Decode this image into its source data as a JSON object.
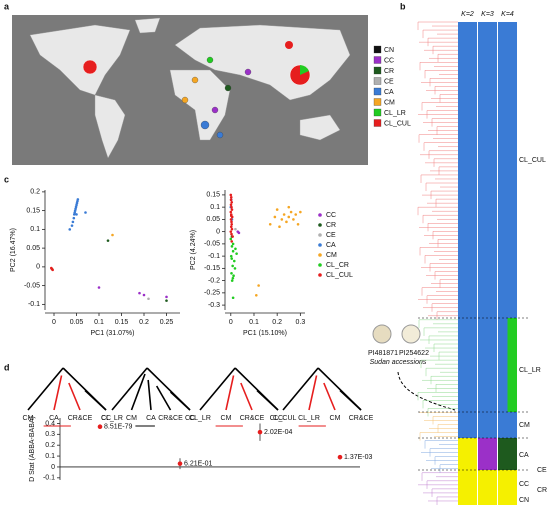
{
  "panel_labels": [
    "a",
    "b",
    "c",
    "d"
  ],
  "map": {
    "legend": [
      {
        "name": "CN",
        "color": "#111111"
      },
      {
        "name": "CC",
        "color": "#9b30c8"
      },
      {
        "name": "CR",
        "color": "#1e5a1e"
      },
      {
        "name": "CE",
        "color": "#b0b0b0"
      },
      {
        "name": "CA",
        "color": "#3a7bd5"
      },
      {
        "name": "CM",
        "color": "#f5a623"
      },
      {
        "name": "CL_LR",
        "color": "#22cc22"
      },
      {
        "name": "CL_CUL",
        "color": "#e61e1e"
      }
    ]
  },
  "tree": {
    "k_labels": [
      "K=2",
      "K=3",
      "K=4"
    ],
    "groups": [
      "CL_CUL",
      "CL_LR",
      "CM",
      "CA",
      "CE",
      "CR",
      "CC",
      "CN"
    ],
    "photos": [
      "PI481871",
      "PI254622"
    ],
    "photo_note": "Sudan accessions"
  },
  "chart_data": [
    {
      "type": "scatter",
      "xlabel": "PC1 (31.07%)",
      "ylabel": "PC2 (16.47%)",
      "xlim": [
        -0.02,
        0.28
      ],
      "ylim": [
        -0.115,
        0.205
      ],
      "xticks": [
        0,
        0.05,
        0.1,
        0.15,
        0.2,
        0.25
      ],
      "yticks": [
        -0.1,
        -0.05,
        0,
        0.05,
        0.1,
        0.15,
        0.2
      ],
      "series": [
        {
          "color": "#9b30c8",
          "x": [
            0.19,
            0.2,
            0.25,
            0.1
          ],
          "values": [
            -0.07,
            -0.075,
            -0.08,
            -0.055
          ]
        },
        {
          "color": "#1e5a1e",
          "x": [
            0.12,
            0.25
          ],
          "values": [
            0.07,
            -0.09
          ]
        },
        {
          "color": "#b0b0b0",
          "x": [
            0.21
          ],
          "values": [
            -0.085
          ]
        },
        {
          "color": "#3a7bd5",
          "x": [
            0.04,
            0.042,
            0.044,
            0.045,
            0.046,
            0.047,
            0.048,
            0.049,
            0.05,
            0.051,
            0.052,
            0.053,
            0.05,
            0.07,
            0.035
          ],
          "values": [
            0.11,
            0.12,
            0.13,
            0.14,
            0.145,
            0.15,
            0.155,
            0.16,
            0.165,
            0.17,
            0.175,
            0.18,
            0.14,
            0.145,
            0.1
          ]
        },
        {
          "color": "#f5a623",
          "x": [
            0.13
          ],
          "values": [
            0.085
          ]
        },
        {
          "color": "#22cc22",
          "x": [
            -0.004
          ],
          "values": [
            -0.006
          ]
        },
        {
          "color": "#e61e1e",
          "x": [
            -0.006,
            -0.003,
            -0.005
          ],
          "values": [
            -0.003,
            -0.008,
            -0.005
          ]
        }
      ]
    },
    {
      "type": "scatter",
      "xlabel": "PC1 (15.10%)",
      "ylabel": "PC2 (4.24%)",
      "xlim": [
        -0.025,
        0.32
      ],
      "ylim": [
        -0.32,
        0.17
      ],
      "xticks": [
        0,
        0.1,
        0.2,
        0.3
      ],
      "yticks": [
        -0.3,
        -0.25,
        -0.2,
        -0.15,
        -0.1,
        -0.05,
        0,
        0.05,
        0.1,
        0.15
      ],
      "series": [
        {
          "name": "CC",
          "color": "#9b30c8",
          "x": [
            0.03,
            0.035
          ],
          "values": [
            0.0,
            -0.005
          ]
        },
        {
          "name": "CR",
          "color": "#1e5a1e",
          "x": [
            0.005
          ],
          "values": [
            -0.02
          ]
        },
        {
          "name": "CE",
          "color": "#b0b0b0",
          "x": [
            0.02
          ],
          "values": [
            0.01
          ]
        },
        {
          "name": "CA",
          "color": "#3a7bd5",
          "x": [
            0.0,
            0.005,
            0.002
          ],
          "values": [
            0.1,
            0.05,
            0.13
          ]
        },
        {
          "name": "CM",
          "color": "#f5a623",
          "x": [
            0.17,
            0.19,
            0.2,
            0.22,
            0.23,
            0.24,
            0.25,
            0.26,
            0.27,
            0.28,
            0.29,
            0.3,
            0.21,
            0.12,
            0.11,
            0.25
          ],
          "values": [
            0.03,
            0.06,
            0.09,
            0.05,
            0.07,
            0.04,
            0.06,
            0.08,
            0.05,
            0.07,
            0.03,
            0.08,
            0.02,
            -0.22,
            -0.26,
            0.1
          ]
        },
        {
          "name": "CL_CR",
          "color": "#22cc22",
          "x": [
            0.0,
            0.005,
            0.01,
            0.002,
            0.015,
            0.008,
            0.02,
            0.003,
            0.012,
            0.006,
            0.018,
            0.01,
            0.004,
            0.025,
            0.009,
            0.01
          ],
          "values": [
            -0.03,
            -0.06,
            -0.08,
            -0.1,
            -0.12,
            -0.14,
            -0.07,
            -0.17,
            -0.18,
            -0.2,
            -0.15,
            -0.05,
            -0.11,
            -0.09,
            -0.19,
            -0.27
          ]
        },
        {
          "name": "CL_CUL",
          "color": "#e61e1e",
          "x": [
            0.0,
            0.002,
            0.004,
            0.001,
            0.003,
            0.005,
            0.0,
            0.002,
            0.006,
            0.001,
            0.003,
            0.004,
            0.002,
            0.005,
            0.0,
            0.003,
            0.008,
            0.001,
            0.004,
            0.002
          ],
          "values": [
            0.15,
            0.14,
            0.12,
            0.11,
            0.1,
            0.09,
            0.08,
            0.07,
            0.06,
            0.05,
            0.04,
            0.03,
            0.02,
            0.01,
            0.0,
            -0.01,
            -0.02,
            0.13,
            -0.04,
            0.065
          ]
        }
      ]
    },
    {
      "type": "errorbar",
      "ylabel": "D Stat (ABBA-BABA)",
      "ylim": [
        -0.12,
        0.45
      ],
      "yticks": [
        -0.1,
        0,
        0.1,
        0.2,
        0.3,
        0.4
      ],
      "trees": [
        [
          "CM",
          "CA",
          "CR&CE",
          "CC"
        ],
        [
          "CL_LR",
          "CM",
          "CA",
          "CR&CE",
          "CC"
        ],
        [
          "CL_LR",
          "CM",
          "CR&CE",
          "CC"
        ],
        [
          "CL_CUL",
          "CL_LR",
          "CM",
          "CR&CE"
        ]
      ],
      "values": [
        0.37,
        0.03,
        0.32,
        0.09
      ],
      "errors": [
        0.01,
        0.05,
        0.08,
        0.02
      ],
      "annotations": [
        "8.51E-79",
        "6.21E-01",
        "2.02E-04",
        "1.37E-03"
      ],
      "color": "#e61e1e"
    }
  ]
}
